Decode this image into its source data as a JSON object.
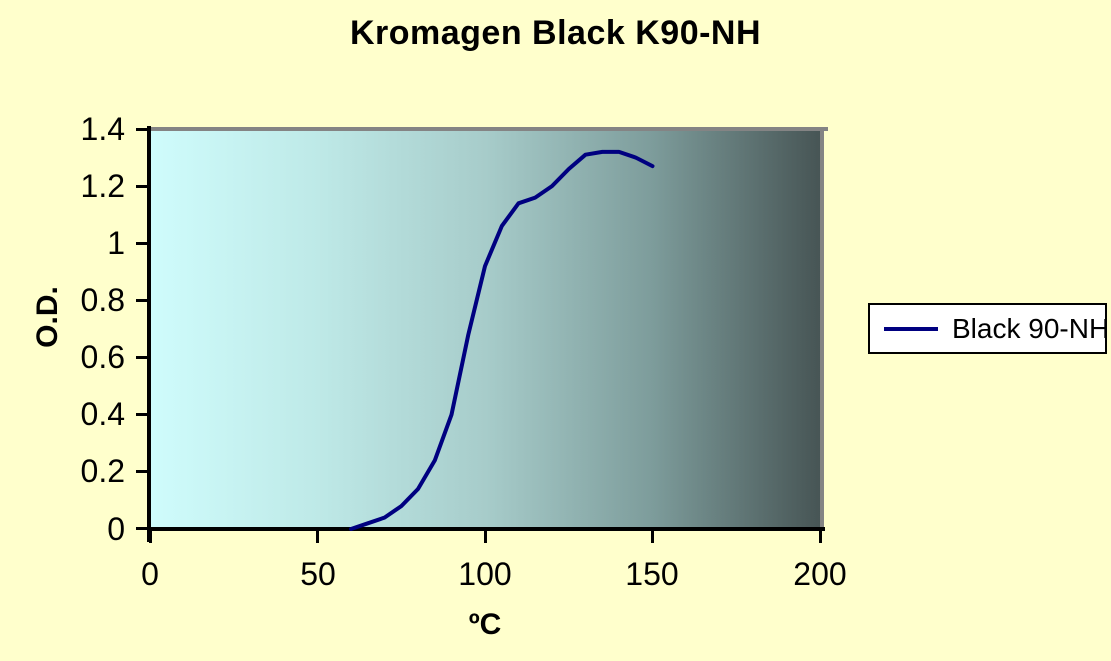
{
  "page": {
    "background_color": "#FFFFCC"
  },
  "chart": {
    "title": "Kromagen Black K90-NH",
    "y_axis": {
      "label": "O.D.",
      "ticks": [
        "1.4",
        "1.2",
        "1",
        "0.8",
        "0.6",
        "0.4",
        "0.2",
        "0"
      ]
    },
    "x_axis": {
      "label": "ºC",
      "ticks": [
        "0",
        "50",
        "100",
        "150",
        "200"
      ]
    },
    "legend": {
      "label": "Black 90-NH",
      "line_color": "#000080"
    },
    "colors": {
      "plot_gradient_left": "#CFFCFC",
      "plot_gradient_right": "#475555",
      "plot_border_gray": "#848484",
      "axis_color": "#000000",
      "text_color": "#000000"
    }
  },
  "chart_data": {
    "type": "line",
    "title": "Kromagen Black K90-NH",
    "xlabel": "ºC",
    "ylabel": "O.D.",
    "xlim": [
      0,
      200
    ],
    "ylim": [
      0,
      1.4
    ],
    "x_ticks": [
      0,
      50,
      100,
      150,
      200
    ],
    "y_ticks": [
      0,
      0.2,
      0.4,
      0.6,
      0.8,
      1,
      1.2,
      1.4
    ],
    "grid": false,
    "legend_position": "right",
    "plot_background": "horizontal gradient light-cyan to dark-slate",
    "series": [
      {
        "name": "Black 90-NH",
        "color": "#000080",
        "x": [
          60,
          65,
          70,
          75,
          80,
          85,
          90,
          95,
          100,
          105,
          110,
          115,
          120,
          125,
          130,
          135,
          140,
          145,
          150
        ],
        "y": [
          0,
          0.02,
          0.04,
          0.08,
          0.14,
          0.24,
          0.4,
          0.68,
          0.92,
          1.06,
          1.14,
          1.16,
          1.2,
          1.26,
          1.31,
          1.32,
          1.32,
          1.3,
          1.27
        ]
      }
    ]
  }
}
